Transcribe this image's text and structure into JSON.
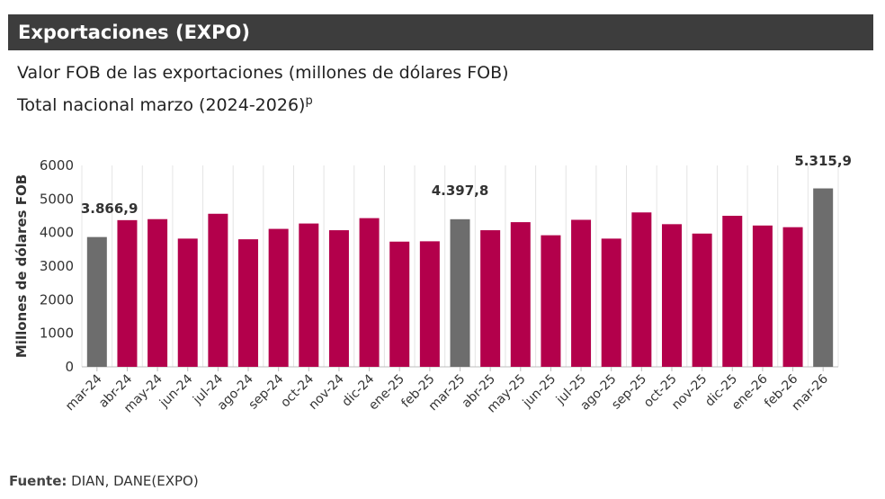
{
  "header": {
    "title": "Exportaciones (EXPO)"
  },
  "chart_title": "Valor FOB de las exportaciones (millones de dólares FOB)",
  "chart_subtitle": "Total nacional marzo (2024-2026)",
  "chart_subtitle_sup": "p",
  "source": {
    "label": "Fuente:",
    "text": "DIAN, DANE(EXPO)"
  },
  "colors": {
    "highlight": "#6d6d6d",
    "normal": "#b3004b",
    "header_bg": "#3d3d3d"
  },
  "chart_data": {
    "type": "bar",
    "title": "Valor FOB de las exportaciones (millones de dólares FOB)",
    "subtitle": "Total nacional marzo (2024-2026)",
    "xlabel": "",
    "ylabel": "Millones de dólares FOB",
    "ylim": [
      0,
      6000
    ],
    "yticks": [
      "0",
      "1000",
      "2000",
      "3000",
      "4000",
      "5000",
      "6000"
    ],
    "grid": "vertical",
    "categories": [
      "mar-24",
      "abr-24",
      "may-24",
      "jun-24",
      "jul-24",
      "ago-24",
      "sep-24",
      "oct-24",
      "nov-24",
      "dic-24",
      "ene-25",
      "feb-25",
      "mar-25",
      "abr-25",
      "may-25",
      "jun-25",
      "jul-25",
      "ago-25",
      "sep-25",
      "oct-25",
      "nov-25",
      "dic-25",
      "ene-26",
      "feb-26",
      "mar-26"
    ],
    "values": [
      3866.9,
      4370,
      4400,
      3820,
      4560,
      3800,
      4110,
      4270,
      4070,
      4430,
      3730,
      3740,
      4397.8,
      4070,
      4310,
      3920,
      4380,
      3820,
      4600,
      4250,
      3970,
      4500,
      4210,
      4160,
      5315.9
    ],
    "highlighted": [
      0,
      12,
      24
    ],
    "data_labels": [
      {
        "index": 0,
        "text": "3.866,9"
      },
      {
        "index": 12,
        "text": "4.397,8"
      },
      {
        "index": 24,
        "text": "5.315,9"
      }
    ]
  }
}
